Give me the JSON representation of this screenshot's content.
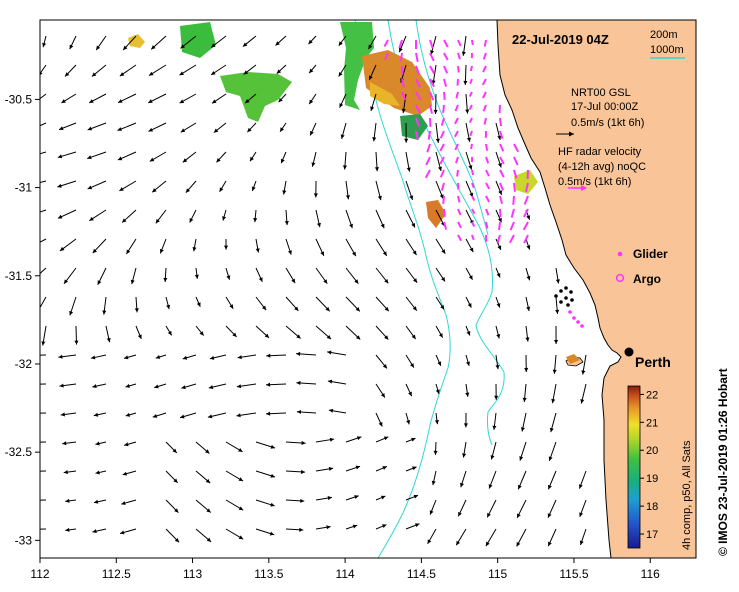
{
  "title": "22-Jul-2019 04Z",
  "bathymetry_legend": {
    "contour_a": "200m",
    "contour_b": "1000m",
    "line_color": "#33d6d6"
  },
  "nrt_legend": {
    "line1": "NRT00 GSL",
    "line2": "17-Jul 00:00Z",
    "line3": "0.5m/s (1kt 6h)"
  },
  "hf_legend": {
    "line1": "HF radar velocity",
    "line2": "(4-12h avg) noQC",
    "line3": "0.5m/s (1kt 6h)",
    "color": "#ff33ff"
  },
  "markers": {
    "glider_label": "Glider",
    "argo_label": "Argo",
    "marker_color": "#ff33ff"
  },
  "city": {
    "name": "Perth",
    "lon": 115.86,
    "lat": -31.95
  },
  "colorbar": {
    "label": "4h comp, p50, All Sats",
    "ticks": [
      "22",
      "21",
      "20",
      "19",
      "18",
      "17"
    ],
    "min": 16.5,
    "max": 22.3
  },
  "axes": {
    "x_ticks": [
      "112",
      "112.5",
      "113",
      "113.5",
      "114",
      "114.5",
      "115",
      "115.5",
      "116"
    ],
    "y_ticks": [
      "-30.5",
      "-31",
      "-31.5",
      "-32",
      "-32.5",
      "-33"
    ],
    "lon_range": [
      112,
      116.3
    ],
    "lat_range": [
      -33.1,
      -30.05
    ]
  },
  "credit": "© IMOS 23-Jul-2019 01:26 Hobart",
  "colors": {
    "land": "#f9c497",
    "coast": "#000000",
    "arrow": "#000000"
  }
}
